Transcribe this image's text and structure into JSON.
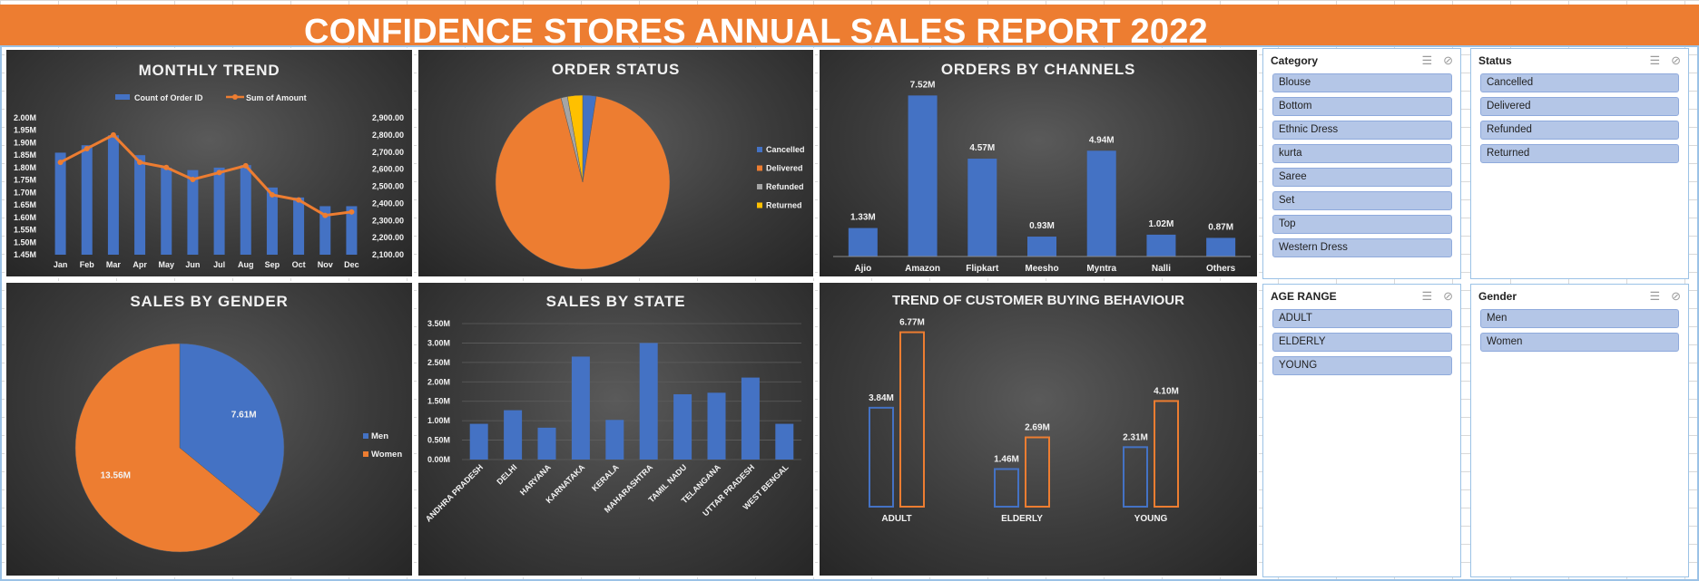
{
  "report_title": "CONFIDENCE STORES ANNUAL SALES REPORT 2022",
  "colors": {
    "banner": "#ed7d31",
    "blue": "#4472c4",
    "orange": "#ed7d31",
    "gray": "#a5a5a5",
    "yellow": "#ffc000",
    "slicer_item": "#b4c6e7"
  },
  "panels": {
    "monthly_trend": "MONTHLY TREND",
    "order_status": "ORDER STATUS",
    "orders_by_channels": "ORDERS BY CHANNELS",
    "sales_by_gender": "SALES BY GENDER",
    "sales_by_state": "SALES BY STATE",
    "buying_behaviour": "TREND OF CUSTOMER BUYING BEHAVIOUR"
  },
  "chart_data": [
    {
      "type": "bar",
      "title": "MONTHLY TREND",
      "categories": [
        "Jan",
        "Feb",
        "Mar",
        "Apr",
        "May",
        "Jun",
        "Jul",
        "Aug",
        "Sep",
        "Oct",
        "Nov",
        "Dec"
      ],
      "series": [
        {
          "name": "Count of Order ID",
          "type": "bar",
          "axis": "left",
          "values": [
            1.86,
            1.89,
            1.93,
            1.85,
            1.8,
            1.79,
            1.8,
            1.81,
            1.72,
            1.68,
            1.645,
            1.645
          ]
        },
        {
          "name": "Sum of Amount",
          "type": "line",
          "axis": "right",
          "values": [
            2640,
            2720,
            2800,
            2640,
            2610,
            2540,
            2580,
            2620,
            2450,
            2420,
            2330,
            2350
          ]
        }
      ],
      "left_ticks": [
        "2.00M",
        "1.95M",
        "1.90M",
        "1.85M",
        "1.80M",
        "1.75M",
        "1.70M",
        "1.65M",
        "1.60M",
        "1.55M",
        "1.50M",
        "1.45M"
      ],
      "right_ticks": [
        "2,900.00",
        "2,800.00",
        "2,700.00",
        "2,600.00",
        "2,500.00",
        "2,400.00",
        "2,300.00",
        "2,200.00",
        "2,100.00"
      ],
      "ylim_left": [
        1.45,
        2.0
      ],
      "ylim_right": [
        2100,
        2900
      ],
      "legend": "top"
    },
    {
      "type": "pie",
      "title": "ORDER STATUS",
      "categories": [
        "Cancelled",
        "Delivered",
        "Refunded",
        "Returned"
      ],
      "values": [
        2.5,
        93.5,
        1.2,
        2.8
      ],
      "legend": "right"
    },
    {
      "type": "bar",
      "title": "ORDERS BY CHANNELS",
      "categories": [
        "Ajio",
        "Amazon",
        "Flipkart",
        "Meesho",
        "Myntra",
        "Nalli",
        "Others"
      ],
      "values": [
        1.33,
        7.52,
        4.57,
        0.93,
        4.94,
        1.02,
        0.87
      ],
      "data_labels": [
        "1.33M",
        "7.52M",
        "4.57M",
        "0.93M",
        "4.94M",
        "1.02M",
        "0.87M"
      ],
      "ylim": [
        0,
        8
      ]
    },
    {
      "type": "pie",
      "title": "SALES BY GENDER",
      "categories": [
        "Men",
        "Women"
      ],
      "values": [
        7.61,
        13.56
      ],
      "data_labels": [
        "7.61M",
        "13.56M"
      ],
      "legend": "right"
    },
    {
      "type": "bar",
      "title": "SALES BY STATE",
      "categories": [
        "ANDHRA PRADESH",
        "DELHI",
        "HARYANA",
        "KARNATAKA",
        "KERALA",
        "MAHARASHTRA",
        "TAMIL NADU",
        "TELANGANA",
        "UTTAR PRADESH",
        "WEST BENGAL"
      ],
      "values": [
        0.92,
        1.27,
        0.82,
        2.65,
        1.02,
        3.0,
        1.68,
        1.72,
        2.11,
        0.92
      ],
      "ticks": [
        "3.50M",
        "3.00M",
        "2.50M",
        "2.00M",
        "1.50M",
        "1.00M",
        "0.50M",
        "0.00M"
      ],
      "ylim": [
        0,
        3.5
      ],
      "grid": true
    },
    {
      "type": "bar",
      "title": "TREND OF CUSTOMER BUYING BEHAVIOUR",
      "categories": [
        "ADULT",
        "ELDERLY",
        "YOUNG"
      ],
      "series": [
        {
          "values": [
            3.84,
            1.46,
            2.31
          ],
          "labels": [
            "3.84M",
            "1.46M",
            "2.31M"
          ]
        },
        {
          "values": [
            6.77,
            2.69,
            4.1
          ],
          "labels": [
            "6.77M",
            "2.69M",
            "4.10M"
          ]
        }
      ],
      "ylim": [
        0,
        7
      ]
    }
  ],
  "slicers": [
    {
      "title": "Category",
      "items": [
        "Blouse",
        "Bottom",
        "Ethnic Dress",
        "kurta",
        "Saree",
        "Set",
        "Top",
        "Western Dress"
      ]
    },
    {
      "title": "Status",
      "items": [
        "Cancelled",
        "Delivered",
        "Refunded",
        "Returned"
      ]
    },
    {
      "title": "AGE RANGE",
      "items": [
        "ADULT",
        "ELDERLY",
        "YOUNG"
      ]
    },
    {
      "title": "Gender",
      "items": [
        "Men",
        "Women"
      ]
    }
  ]
}
